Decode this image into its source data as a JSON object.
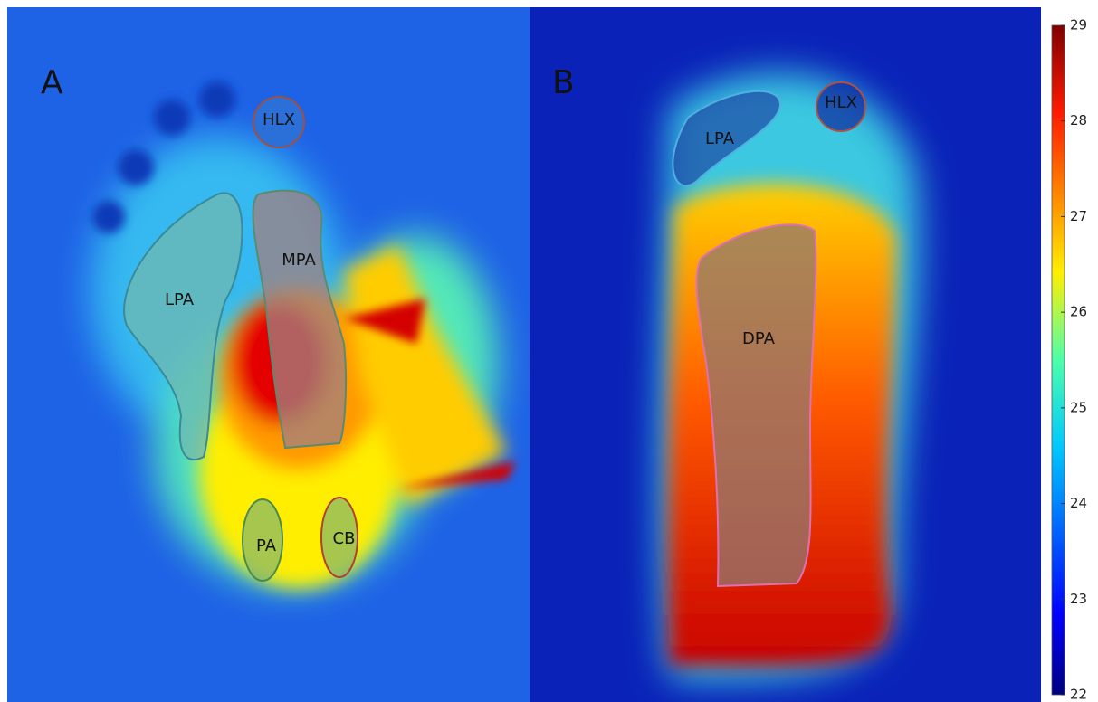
{
  "panels": [
    {
      "label": "A",
      "regions": [
        "HLX",
        "LPA",
        "MPA",
        "PA",
        "CB"
      ]
    },
    {
      "label": "B",
      "regions": [
        "LPA",
        "HLX",
        "DPA"
      ]
    }
  ],
  "colorbar": {
    "range": [
      22,
      29
    ],
    "ticks": [
      22,
      23,
      24,
      25,
      26,
      27,
      28,
      29
    ]
  }
}
